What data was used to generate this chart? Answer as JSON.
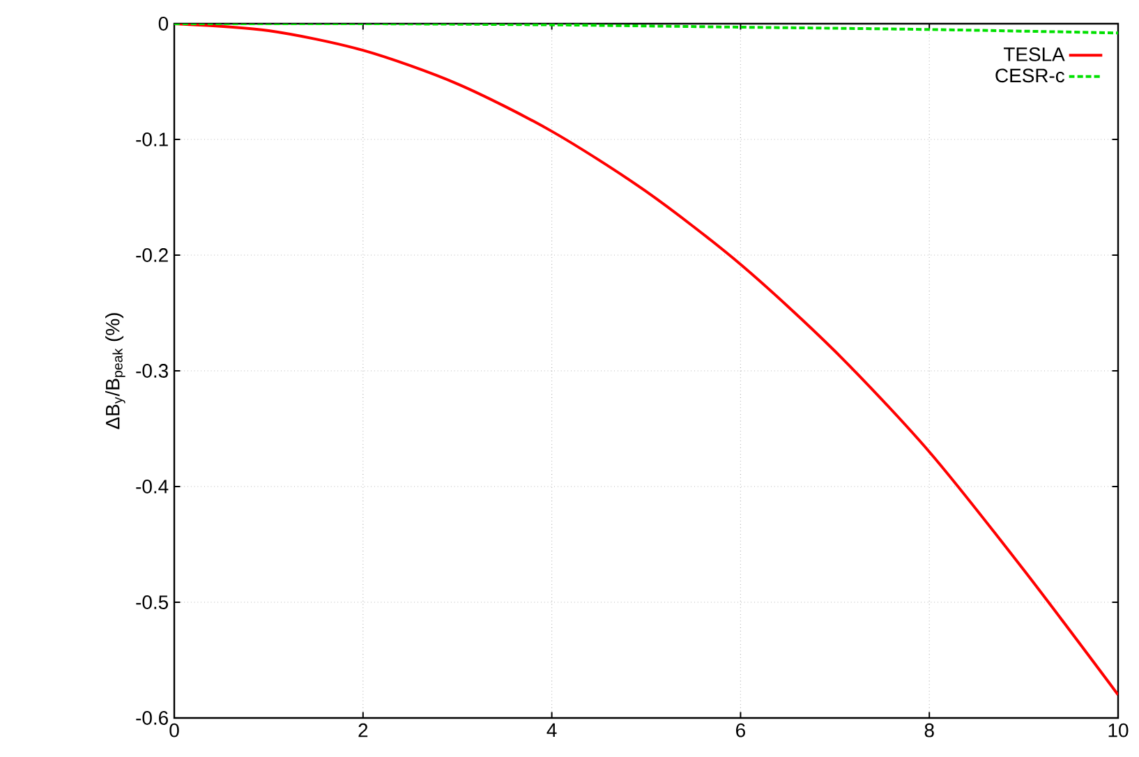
{
  "chart_data": {
    "type": "line",
    "ylabel": "ΔB$_{y}$/B$_{peak}$ (%)",
    "xlim": [
      0,
      10
    ],
    "ylim": [
      -0.6,
      0
    ],
    "xticks": [
      0,
      2,
      4,
      6,
      8,
      10
    ],
    "yticks": [
      -0.6,
      -0.5,
      -0.4,
      -0.3,
      -0.2,
      -0.1,
      0
    ],
    "grid": true,
    "legend": "top right",
    "marker": "none",
    "series": [
      {
        "name": "TESLA",
        "color": "#ff0000",
        "line_style": "solid",
        "x": [
          0,
          1,
          2,
          3,
          4,
          5,
          6,
          7,
          8,
          9,
          10
        ],
        "values": [
          0,
          -0.006,
          -0.023,
          -0.052,
          -0.093,
          -0.145,
          -0.208,
          -0.283,
          -0.37,
          -0.472,
          -0.58
        ]
      },
      {
        "name": "CESR-c",
        "color": "#00e000",
        "line_style": "dashed",
        "x": [
          0,
          2,
          4,
          6,
          8,
          10
        ],
        "values": [
          0,
          0,
          -0.001,
          -0.003,
          -0.005,
          -0.008
        ]
      }
    ]
  }
}
